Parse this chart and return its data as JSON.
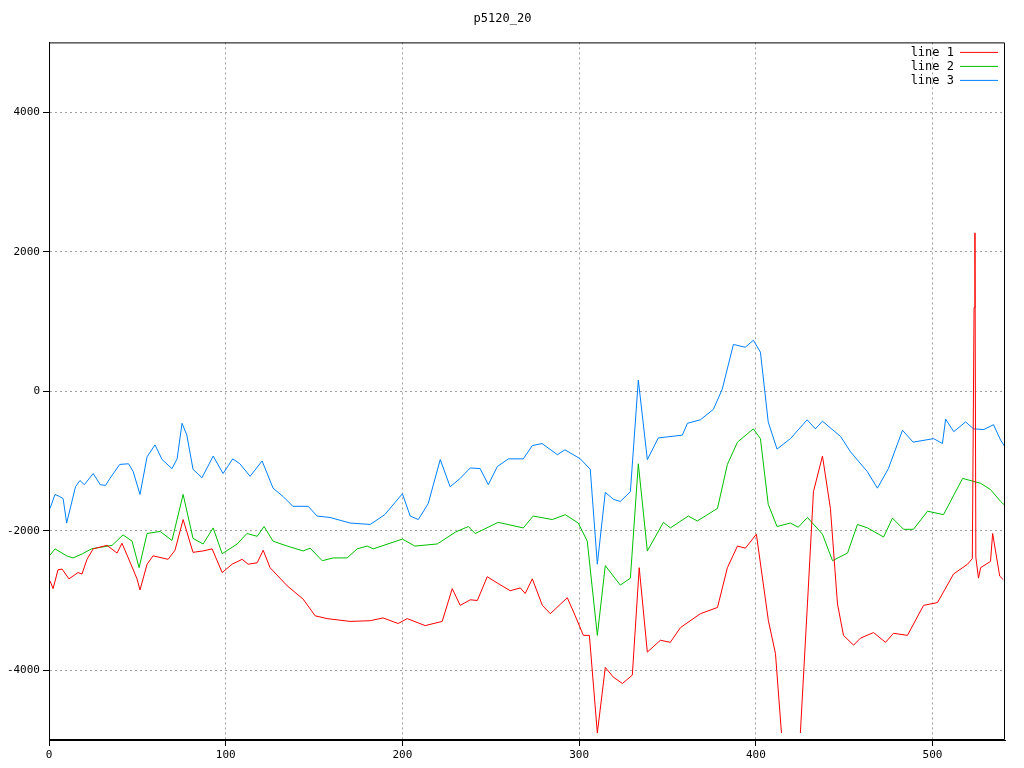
{
  "chart_data": {
    "type": "line",
    "title": "p5120_20",
    "xlim": [
      0,
      541
    ],
    "xticks": [
      0,
      100,
      200,
      300,
      400,
      500
    ],
    "ylim": [
      -5000,
      5000
    ],
    "yticks": [
      -4000,
      -2000,
      0,
      2000,
      4000
    ],
    "grid": true,
    "legend": "top right",
    "marker": "none",
    "line_style": "solid",
    "series": [
      {
        "name": "line 1",
        "color": "#ff0000",
        "x": [
          0.6,
          2.3,
          5.1,
          7.4,
          11.3,
          16.4,
          18.7,
          21.5,
          25,
          32.8,
          38.5,
          41.3,
          44.7,
          49.8,
          51.5,
          55.5,
          58.9,
          67.4,
          71.3,
          75.9,
          81.5,
          87.2,
          92.3,
          98,
          103.6,
          109.3,
          112.7,
          117.8,
          121.2,
          125.1,
          134.8,
          143.8,
          150.6,
          157.4,
          170.4,
          181.8,
          189,
          197.6,
          202.7,
          212.9,
          222.5,
          228.2,
          232.7,
          238.4,
          242.4,
          248,
          253.7,
          261,
          266.7,
          269.5,
          273.5,
          279.2,
          283.7,
          293.3,
          297.8,
          302.4,
          305.8,
          310.3,
          314.8,
          319.4,
          324.5,
          330.1,
          334,
          338.6,
          346,
          351.6,
          357.3,
          368.6,
          378.3,
          383.9,
          389.6,
          394.1,
          400.3,
          407.1,
          411.1,
          414.5,
          420,
          425.2,
          429.2,
          432.6,
          437.7,
          442.2,
          446.2,
          449.6,
          455.3,
          459.2,
          466.6,
          473.4,
          477.9,
          485.8,
          494.9,
          502.8,
          511.9,
          519.8,
          522.5,
          523.5,
          524,
          524.5,
          526,
          527.2,
          532.8,
          534,
          538,
          540
        ],
        "values": [
          -2720,
          -2830,
          -2560,
          -2550,
          -2690,
          -2600,
          -2620,
          -2410,
          -2260,
          -2210,
          -2320,
          -2180,
          -2380,
          -2690,
          -2850,
          -2480,
          -2360,
          -2410,
          -2280,
          -1840,
          -2310,
          -2290,
          -2260,
          -2600,
          -2480,
          -2410,
          -2480,
          -2460,
          -2280,
          -2530,
          -2790,
          -2980,
          -3220,
          -3260,
          -3300,
          -3290,
          -3250,
          -3330,
          -3260,
          -3360,
          -3300,
          -2830,
          -3070,
          -2990,
          -3000,
          -2660,
          -2750,
          -2860,
          -2820,
          -2900,
          -2690,
          -3070,
          -3190,
          -2960,
          -3220,
          -3500,
          -3500,
          -4900,
          -3960,
          -4100,
          -4190,
          -4070,
          -2530,
          -3740,
          -3570,
          -3600,
          -3390,
          -3190,
          -3100,
          -2530,
          -2220,
          -2250,
          -2050,
          -3290,
          -3760,
          -4900,
          null,
          -4900,
          -3050,
          -1440,
          -930,
          -1680,
          -3050,
          -3500,
          -3640,
          -3540,
          -3460,
          -3600,
          -3470,
          -3500,
          -3070,
          -3030,
          -2620,
          -2480,
          -2400,
          1200,
          2270,
          -2380,
          -2680,
          -2530,
          -2440,
          -2040,
          -2650,
          -2700
        ]
      },
      {
        "name": "line 2",
        "color": "#00c000",
        "x": [
          0.6,
          3.4,
          10,
          13.6,
          19,
          24,
          35.7,
          41.9,
          47,
          51,
          55.5,
          62.9,
          69.6,
          75.9,
          81.5,
          87.2,
          92.9,
          98,
          106.5,
          112,
          117.8,
          121.7,
          126.8,
          134.8,
          143.8,
          147.8,
          154.6,
          160.8,
          168.7,
          174.4,
          180,
          183.5,
          200,
          207,
          219.7,
          230,
          237.3,
          241.2,
          254.2,
          268.4,
          274,
          284.8,
          292.2,
          299.5,
          304.6,
          310.3,
          314.8,
          323.3,
          329,
          333.5,
          338.6,
          347.7,
          351.6,
          361.8,
          366.9,
          378.3,
          383.9,
          389.6,
          398.6,
          402.6,
          407,
          412,
          419.6,
          424,
          429.2,
          437.7,
          443.4,
          451.9,
          457.5,
          463.2,
          472.3,
          477.3,
          483.6,
          489.2,
          497.2,
          506.2,
          517,
          527.2,
          532.8,
          538.5,
          541
        ],
        "values": [
          -2350,
          -2260,
          -2360,
          -2390,
          -2330,
          -2260,
          -2210,
          -2060,
          -2150,
          -2530,
          -2040,
          -2010,
          -2140,
          -1480,
          -2110,
          -2190,
          -1960,
          -2330,
          -2190,
          -2040,
          -2080,
          -1940,
          -2150,
          -2220,
          -2290,
          -2250,
          -2430,
          -2390,
          -2390,
          -2260,
          -2220,
          -2260,
          -2120,
          -2220,
          -2190,
          -2020,
          -1940,
          -2040,
          -1880,
          -1960,
          -1790,
          -1840,
          -1770,
          -1890,
          -2150,
          -3500,
          -2500,
          -2780,
          -2680,
          -1040,
          -2290,
          -1880,
          -1960,
          -1790,
          -1860,
          -1680,
          -1050,
          -730,
          -540,
          -680,
          -1620,
          -1940,
          -1890,
          -1950,
          -1810,
          -2050,
          -2430,
          -2320,
          -1910,
          -1960,
          -2090,
          -1820,
          -1980,
          -1980,
          -1720,
          -1770,
          -1250,
          -1320,
          -1410,
          -1580,
          -1640
        ]
      },
      {
        "name": "line 3",
        "color": "#0080ff",
        "x": [
          0.6,
          3.4,
          6,
          8,
          10,
          15,
          17.5,
          20,
          25,
          29,
          32,
          34.5,
          40,
          45,
          47.6,
          51.5,
          55.5,
          60,
          64,
          69.6,
          72.5,
          75.3,
          78,
          81.5,
          86.6,
          92.9,
          98.5,
          101.4,
          104,
          108,
          113.8,
          120.6,
          126.8,
          132.5,
          138,
          146.7,
          151.7,
          159,
          170.4,
          181.8,
          190,
          200,
          204.4,
          209,
          214.6,
          221.4,
          227,
          232.7,
          238.4,
          244,
          248.6,
          253.7,
          260,
          268.4,
          273.5,
          279,
          287.7,
          292,
          300.7,
          306.3,
          310.3,
          314.8,
          319.4,
          323.3,
          329,
          333.5,
          338.6,
          344.8,
          358.4,
          361.3,
          368.6,
          376,
          381,
          387.3,
          394,
          398.6,
          402.6,
          407,
          412,
          419.6,
          429,
          433.7,
          437.7,
          448,
          453.6,
          463,
          468.8,
          475,
          483,
          489,
          500.6,
          505.6,
          507.4,
          512,
          518.7,
          523.2,
          529,
          534.5,
          538.5,
          541
        ],
        "values": [
          -1680,
          -1480,
          -1510,
          -1540,
          -1890,
          -1370,
          -1280,
          -1340,
          -1180,
          -1340,
          -1350,
          -1250,
          -1050,
          -1040,
          -1150,
          -1480,
          -940,
          -770,
          -980,
          -1110,
          -970,
          -460,
          -630,
          -1120,
          -1240,
          -930,
          -1180,
          -1070,
          -970,
          -1040,
          -1220,
          -1000,
          -1390,
          -1510,
          -1650,
          -1650,
          -1790,
          -1810,
          -1890,
          -1910,
          -1770,
          -1470,
          -1790,
          -1840,
          -1610,
          -980,
          -1370,
          -1250,
          -1100,
          -1110,
          -1340,
          -1080,
          -970,
          -970,
          -780,
          -750,
          -910,
          -840,
          -970,
          -1120,
          -2480,
          -1450,
          -1550,
          -1580,
          -1440,
          160,
          -980,
          -670,
          -630,
          -460,
          -410,
          -260,
          30,
          670,
          630,
          730,
          560,
          -440,
          -830,
          -680,
          -410,
          -540,
          -430,
          -650,
          -870,
          -1150,
          -1390,
          -1110,
          -560,
          -730,
          -680,
          -750,
          -400,
          -580,
          -440,
          -540,
          -550,
          -480,
          -700,
          -800
        ]
      }
    ]
  }
}
